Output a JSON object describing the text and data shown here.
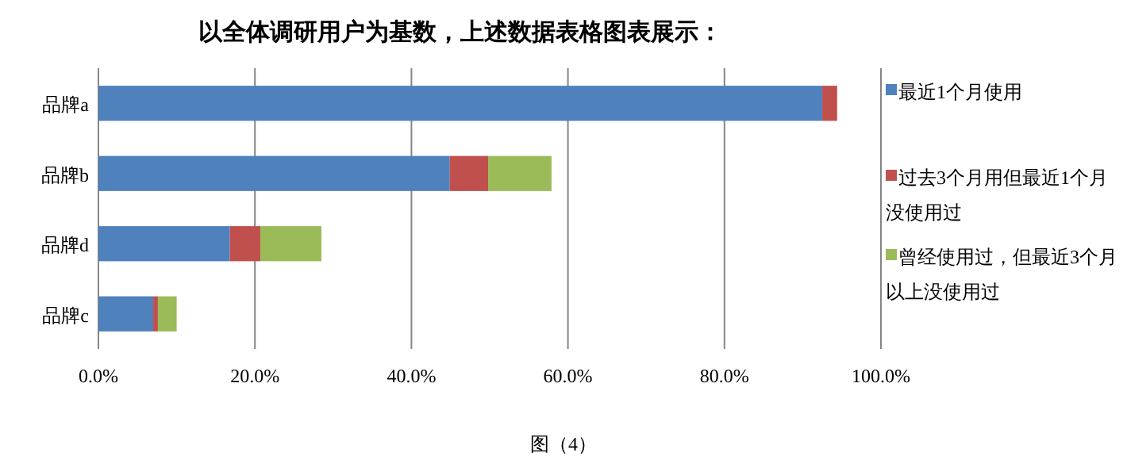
{
  "chart_data": {
    "type": "bar",
    "orientation": "horizontal",
    "stacked": true,
    "title": "以全体调研用户为基数，上述数据表格图表展示：",
    "categories": [
      "品牌a",
      "品牌b",
      "品牌d",
      "品牌c"
    ],
    "series": [
      {
        "name": "最近1个月使用",
        "color": "#4f81bd",
        "values": [
          92.5,
          44.9,
          16.8,
          7.0
        ]
      },
      {
        "name": "过去3个月用但最近1个月没使用过",
        "color": "#c0504d",
        "values": [
          1.9,
          4.9,
          3.9,
          0.6
        ]
      },
      {
        "name": "曾经使用过，但最近3个月以上没使用过",
        "color": "#9bbb59",
        "values": [
          null,
          8.1,
          7.8,
          2.4
        ]
      }
    ],
    "xlim": [
      0,
      100
    ],
    "xticks": [
      {
        "value": 0,
        "label": "0.0%"
      },
      {
        "value": 20,
        "label": "20.0%"
      },
      {
        "value": 40,
        "label": "40.0%"
      },
      {
        "value": 60,
        "label": "60.0%"
      },
      {
        "value": 80,
        "label": "80.0%"
      },
      {
        "value": 100,
        "label": "100.0%"
      }
    ],
    "grid": "x",
    "legend": "right",
    "annotations": [
      "图（4）"
    ]
  }
}
